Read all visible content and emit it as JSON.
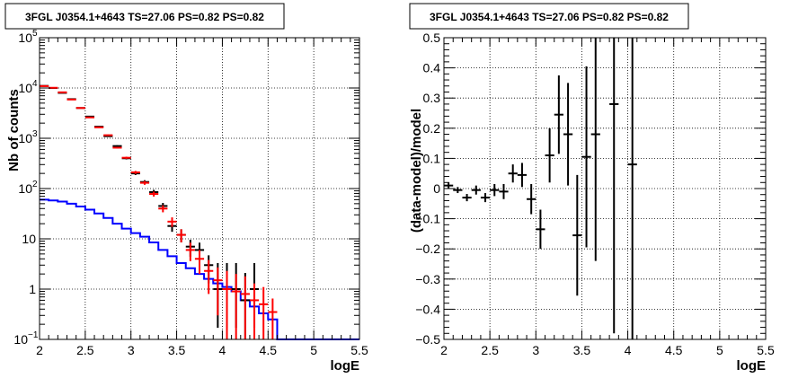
{
  "chart_data": [
    {
      "type": "line",
      "title": "3FGL J0354.1+4643 TS=27.06 PS=0.82 PS=0.82",
      "xlabel": "logE",
      "ylabel": "Nb of counts",
      "xlim": [
        2,
        5.5
      ],
      "ylim": [
        0.1,
        100000
      ],
      "yscale": "log",
      "grid": true,
      "x_ticks": [
        "2",
        "2.5",
        "3",
        "3.5",
        "4",
        "4.5",
        "5",
        "5.5"
      ],
      "y_ticks": [
        {
          "value": 0.1,
          "label": "10",
          "sup": "−1"
        },
        {
          "value": 1,
          "label": "1",
          "sup": ""
        },
        {
          "value": 10,
          "label": "10",
          "sup": ""
        },
        {
          "value": 100,
          "label": "10",
          "sup": "2"
        },
        {
          "value": 1000,
          "label": "10",
          "sup": "3"
        },
        {
          "value": 10000,
          "label": "10",
          "sup": "4"
        },
        {
          "value": 100000,
          "label": "10",
          "sup": "5"
        }
      ],
      "colors": {
        "data": "#000000",
        "model": "#ff0000",
        "source": "#0000ff"
      },
      "bin_edges": [
        2.0,
        2.1,
        2.2,
        2.3,
        2.4,
        2.5,
        2.6,
        2.7,
        2.8,
        2.9,
        3.0,
        3.1,
        3.2,
        3.3,
        3.4,
        3.5,
        3.6,
        3.7,
        3.8,
        3.9,
        4.0,
        4.1,
        4.2,
        4.3,
        4.4,
        4.5,
        4.6,
        4.7,
        4.8,
        4.9,
        5.0,
        5.1,
        5.2,
        5.3,
        5.4,
        5.5
      ],
      "series": [
        {
          "role": "data",
          "x": [
            2.05,
            2.15,
            2.25,
            2.35,
            2.45,
            2.55,
            2.65,
            2.75,
            2.85,
            2.95,
            3.05,
            3.15,
            3.25,
            3.35,
            3.45,
            3.55,
            3.65,
            3.75,
            3.85,
            3.95,
            4.05,
            4.15,
            4.25,
            4.35,
            4.45
          ],
          "y": [
            11000,
            10000,
            8000,
            6000,
            4000,
            2700,
            1700,
            1100,
            700,
            400,
            200,
            135,
            85,
            45,
            18,
            12,
            7,
            6,
            3,
            1,
            1,
            1,
            0.6,
            1,
            0
          ],
          "err_low": [
            105,
            100,
            90,
            78,
            63,
            52,
            41,
            33,
            26,
            20,
            14,
            11.6,
            9.2,
            6.7,
            4.2,
            3.5,
            2.6,
            2.4,
            1.7,
            0.83,
            0.83,
            0.83,
            0.6,
            0.83,
            0
          ],
          "err_high": [
            105,
            100,
            90,
            78,
            63,
            52,
            41,
            33,
            26,
            20,
            14,
            11.6,
            9.2,
            6.7,
            4.2,
            3.5,
            2.6,
            2.4,
            1.7,
            2.3,
            2.3,
            2.3,
            1.5,
            2.3,
            0
          ]
        },
        {
          "role": "model",
          "x": [
            2.05,
            2.15,
            2.25,
            2.35,
            2.45,
            2.55,
            2.65,
            2.75,
            2.85,
            2.95,
            3.05,
            3.15,
            3.25,
            3.35,
            3.45,
            3.55,
            3.65,
            3.75,
            3.85,
            3.95,
            4.05,
            4.15,
            4.25,
            4.35,
            4.45,
            4.55
          ],
          "y": [
            10900,
            10100,
            8200,
            5900,
            4000,
            2600,
            1650,
            1150,
            650,
            410,
            210,
            130,
            78,
            40,
            22,
            12,
            6,
            4,
            2.3,
            1.5,
            1,
            0.9,
            0.8,
            0.6,
            0.5,
            0.35
          ],
          "err_low": [
            104,
            100,
            90,
            77,
            63,
            51,
            41,
            34,
            25,
            20,
            14.5,
            11.4,
            8.8,
            6.3,
            4.7,
            3.5,
            2.4,
            2,
            1.5,
            1.2,
            0.9,
            0.8,
            0.7,
            0.5,
            0.4,
            0.3
          ],
          "err_high": [
            104,
            100,
            90,
            77,
            63,
            51,
            41,
            34,
            25,
            20,
            14.5,
            11.4,
            8.8,
            6.3,
            4.7,
            3.5,
            2.4,
            2,
            1.5,
            1.2,
            1.3,
            1.1,
            1.0,
            0.7,
            0.6,
            0.3
          ]
        },
        {
          "role": "source",
          "steps": [
            60,
            58,
            55,
            50,
            44,
            38,
            32,
            26,
            20,
            16,
            13,
            11,
            8.5,
            6,
            4.5,
            3.3,
            2.6,
            2,
            1.6,
            1.3,
            1.1,
            0.9,
            0.6,
            0.45,
            0.33,
            0.25,
            0.1,
            0.1,
            0.1,
            0.1,
            0.1,
            0.1,
            0.1,
            0.1,
            0.1
          ]
        }
      ]
    },
    {
      "type": "scatter",
      "title": "3FGL J0354.1+4643 TS=27.06 PS=0.82 PS=0.82",
      "xlabel": "logE",
      "ylabel": "(data-model)/model",
      "xlim": [
        2,
        5.5
      ],
      "ylim": [
        -0.5,
        0.5
      ],
      "grid": true,
      "x_ticks": [
        "2",
        "2.5",
        "3",
        "3.5",
        "4",
        "4.5",
        "5",
        "5.5"
      ],
      "y_ticks": [
        "−0.5",
        "−0.4",
        "−0.3",
        "−0.2",
        "−0.1",
        "0",
        "0.1",
        "0.2",
        "0.3",
        "0.4",
        "0.5"
      ],
      "colors": {
        "points": "#000000"
      },
      "series": [
        {
          "x": [
            2.05,
            2.15,
            2.25,
            2.35,
            2.45,
            2.55,
            2.65,
            2.75,
            2.85,
            2.95,
            3.05,
            3.15,
            3.25,
            3.35,
            3.45,
            3.55,
            3.65,
            3.85,
            4.05
          ],
          "y": [
            0.01,
            -0.005,
            -0.03,
            -0.005,
            -0.03,
            -0.005,
            -0.01,
            0.05,
            0.045,
            -0.035,
            -0.135,
            0.11,
            0.245,
            0.18,
            -0.155,
            0.105,
            0.18,
            0.28,
            0.08
          ],
          "err": [
            0.01,
            0.01,
            0.012,
            0.015,
            0.015,
            0.02,
            0.025,
            0.03,
            0.04,
            0.05,
            0.065,
            0.09,
            0.13,
            0.17,
            0.2,
            0.3,
            0.42,
            0.76,
            1.0
          ]
        }
      ]
    }
  ]
}
